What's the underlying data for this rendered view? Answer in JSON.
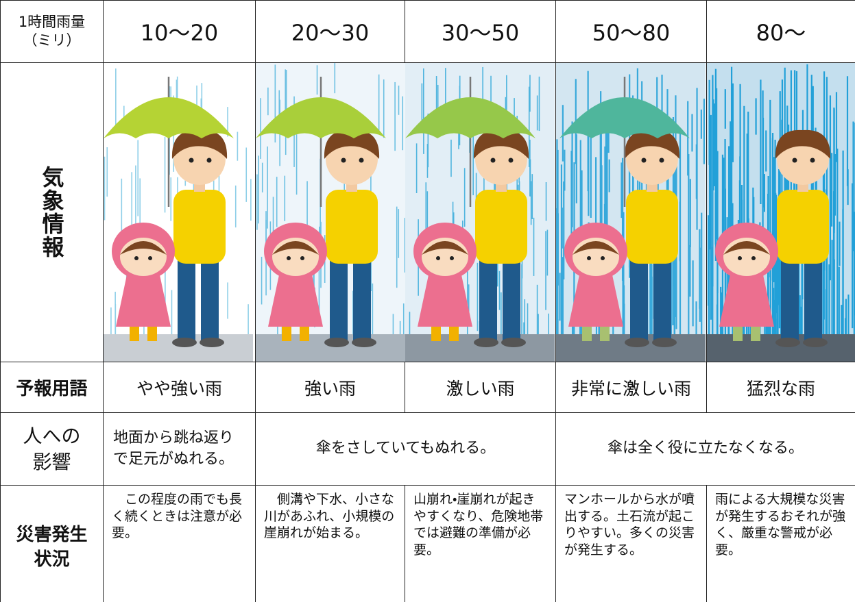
{
  "table": {
    "header": {
      "label": [
        "1時間雨量",
        "（ミリ）"
      ],
      "columns": [
        "10〜20",
        "20〜30",
        "30〜50",
        "50〜80",
        "80〜"
      ]
    },
    "weather_row": {
      "label": "気象情報"
    },
    "forecast_row": {
      "label": "予報用語",
      "cells": [
        "やや強い雨",
        "強い雨",
        "激しい雨",
        "非常に激しい雨",
        "猛烈な雨"
      ]
    },
    "impact_row": {
      "label": [
        "人への",
        "影響"
      ],
      "cells": [
        "地面から跳ね返りで足元がぬれる。",
        "傘をさしていてもぬれる。",
        "傘は全く役に立たなくなる。"
      ]
    },
    "disaster_row": {
      "label": [
        "災害発生",
        "状況"
      ],
      "cells": [
        "この程度の雨でも長く続くときは注意が必要。",
        "側溝や下水、小さな川があふれ、小規模の崖崩れが始まる。",
        "山崩れ・崖崩れが起きやすくなり、危険地帯では避難の準備が必要。",
        "マンホールから水が噴出する。土石流が起こりやすい。多くの災害が発生する。",
        "雨による大規模な災害が発生するおそれが強く、厳重な警戒が必要。"
      ]
    }
  }
}
